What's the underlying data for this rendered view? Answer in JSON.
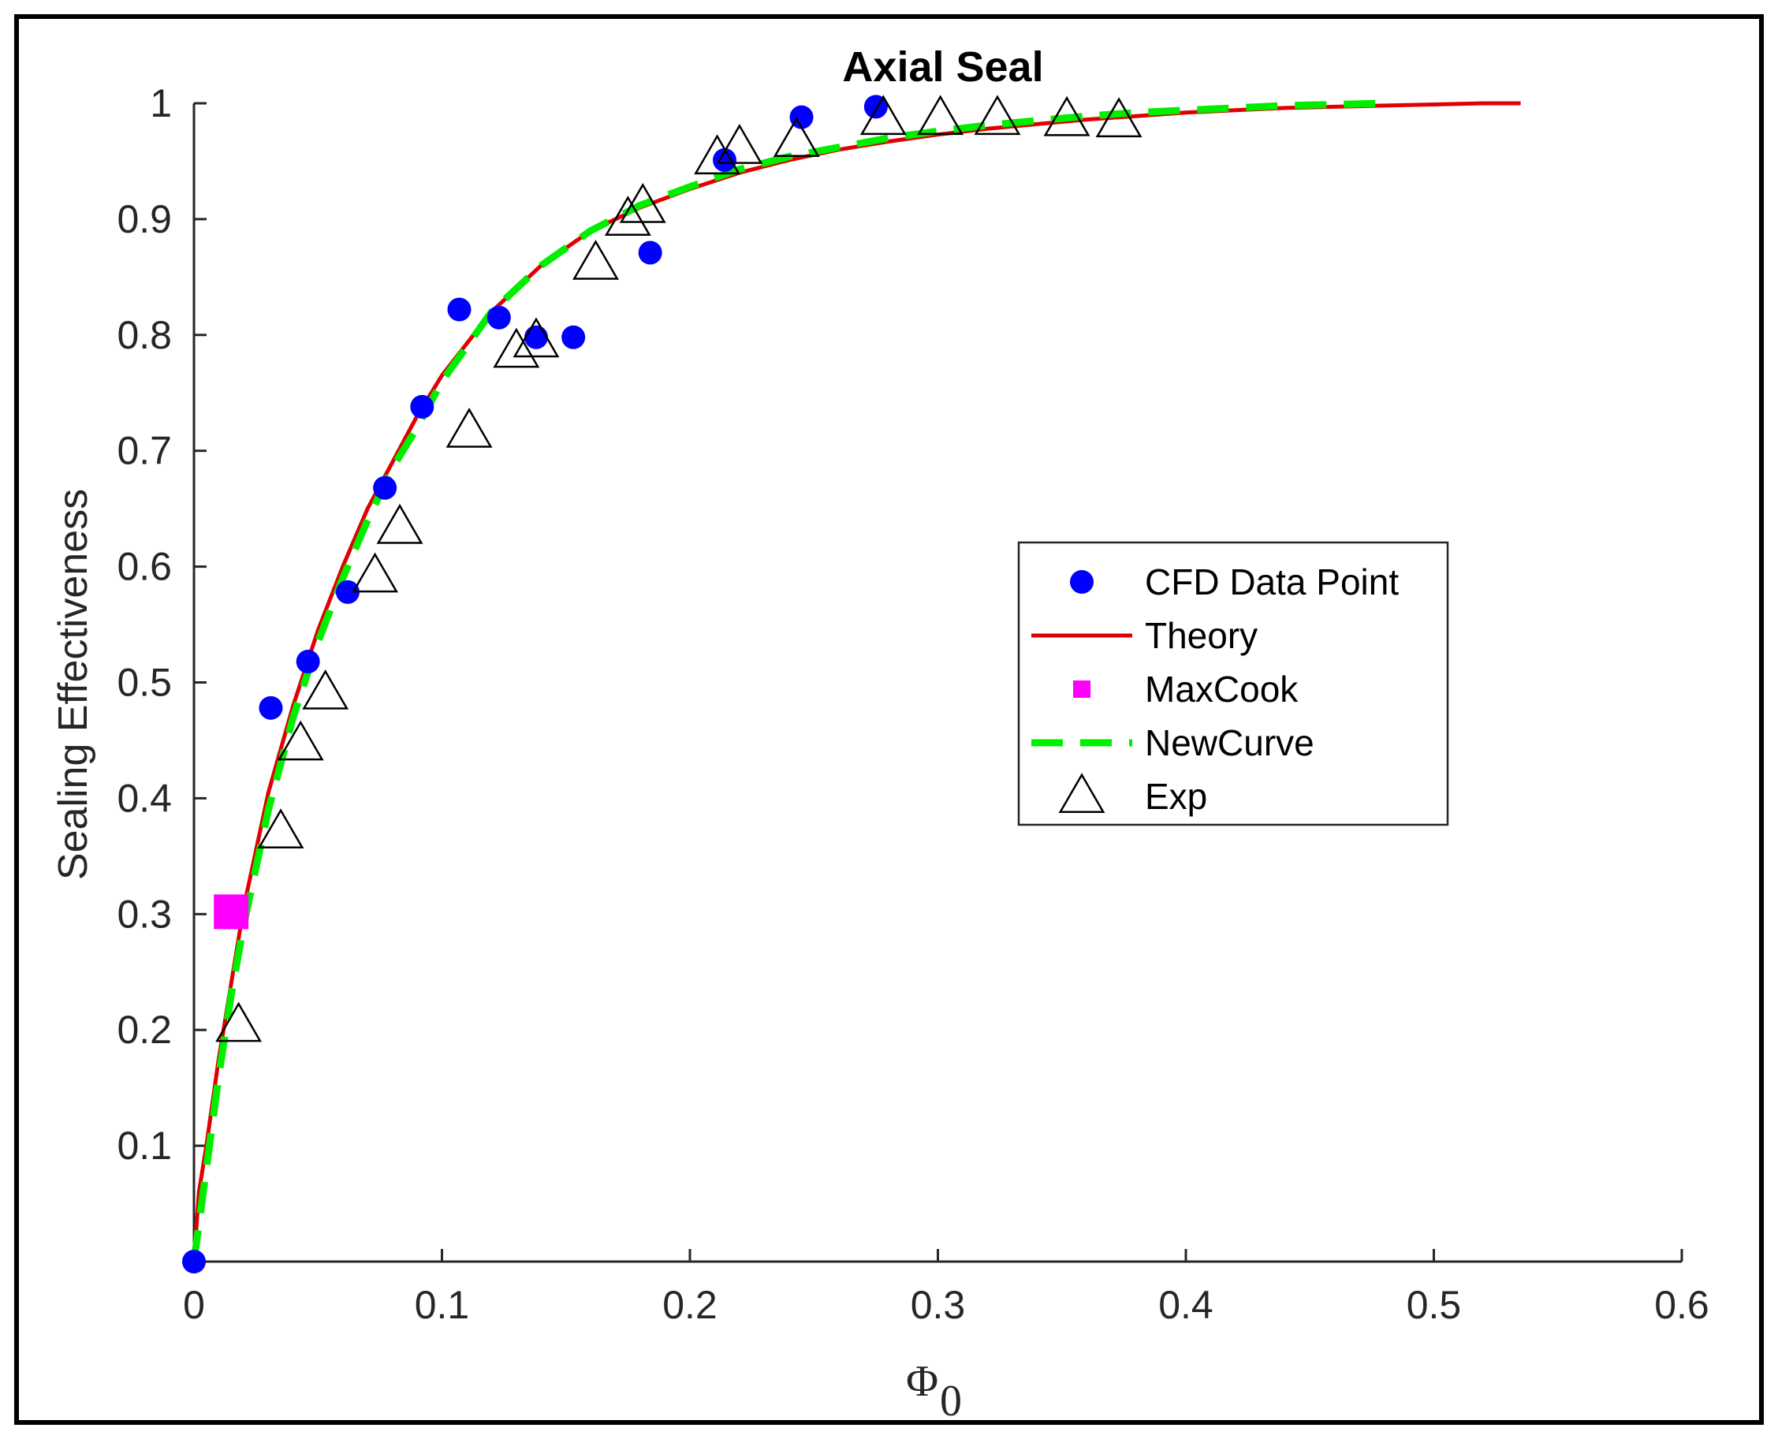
{
  "chart_data": {
    "type": "scatter",
    "title": "Axial Seal",
    "xlabel": "Φ",
    "xlabel_subscript": "0",
    "ylabel": "Sealing Effectiveness",
    "xlim": [
      0,
      0.6
    ],
    "ylim": [
      0,
      1
    ],
    "x_ticks": [
      0,
      0.1,
      0.2,
      0.3,
      0.4,
      0.5,
      0.6
    ],
    "x_tick_labels": [
      "0",
      "0.1",
      "0.2",
      "0.3",
      "0.4",
      "0.5",
      "0.6"
    ],
    "y_ticks": [
      0.1,
      0.2,
      0.3,
      0.4,
      0.5,
      0.6,
      0.7,
      0.8,
      0.9,
      1
    ],
    "y_tick_labels": [
      "0.1",
      "0.2",
      "0.3",
      "0.4",
      "0.5",
      "0.6",
      "0.7",
      "0.8",
      "0.9",
      "1"
    ],
    "grid": false,
    "legend_position": "center-right",
    "series": [
      {
        "name": "CFD Data Point",
        "kind": "scatter",
        "marker": "circle",
        "color": "#0000ff",
        "x": [
          0,
          0.031,
          0.046,
          0.062,
          0.077,
          0.092,
          0.107,
          0.123,
          0.138,
          0.153,
          0.184,
          0.214,
          0.245,
          0.275
        ],
        "y": [
          0.0,
          0.478,
          0.518,
          0.578,
          0.668,
          0.738,
          0.822,
          0.815,
          0.798,
          0.798,
          0.871,
          0.951,
          0.988,
          0.997
        ]
      },
      {
        "name": "Theory",
        "kind": "line",
        "style": "solid",
        "color": "#e00000",
        "x": [
          0,
          0.002,
          0.005,
          0.01,
          0.015,
          0.02,
          0.03,
          0.04,
          0.05,
          0.06,
          0.07,
          0.08,
          0.09,
          0.1,
          0.12,
          0.14,
          0.16,
          0.18,
          0.2,
          0.22,
          0.24,
          0.26,
          0.28,
          0.3,
          0.32,
          0.34,
          0.36,
          0.38,
          0.4,
          0.42,
          0.44,
          0.46,
          0.48,
          0.5,
          0.52,
          0.535
        ],
        "y": [
          0.0,
          0.06,
          0.1,
          0.175,
          0.24,
          0.305,
          0.405,
          0.48,
          0.545,
          0.6,
          0.65,
          0.69,
          0.73,
          0.765,
          0.82,
          0.86,
          0.89,
          0.91,
          0.926,
          0.94,
          0.951,
          0.96,
          0.967,
          0.973,
          0.978,
          0.982,
          0.986,
          0.989,
          0.992,
          0.994,
          0.996,
          0.997,
          0.998,
          0.999,
          1.0,
          1.0
        ]
      },
      {
        "name": "MaxCook",
        "kind": "scatter",
        "marker": "square",
        "color": "#ff00ff",
        "x": [
          0.015
        ],
        "y": [
          0.302
        ]
      },
      {
        "name": "NewCurve",
        "kind": "line",
        "style": "dashed",
        "color": "#00ee00",
        "x": [
          0,
          0.005,
          0.01,
          0.015,
          0.02,
          0.03,
          0.04,
          0.05,
          0.06,
          0.07,
          0.08,
          0.09,
          0.1,
          0.12,
          0.14,
          0.16,
          0.18,
          0.2,
          0.22,
          0.24,
          0.26,
          0.28,
          0.3,
          0.32,
          0.34,
          0.36,
          0.38,
          0.4,
          0.42,
          0.44,
          0.46,
          0.48
        ],
        "y": [
          0.0,
          0.08,
          0.16,
          0.23,
          0.29,
          0.39,
          0.47,
          0.535,
          0.59,
          0.64,
          0.685,
          0.72,
          0.76,
          0.82,
          0.86,
          0.89,
          0.912,
          0.928,
          0.943,
          0.954,
          0.962,
          0.97,
          0.976,
          0.981,
          0.985,
          0.989,
          0.992,
          0.994,
          0.996,
          0.998,
          0.999,
          1.0
        ]
      },
      {
        "name": "Exp",
        "kind": "scatter",
        "marker": "triangle-open",
        "color": "#000000",
        "x": [
          0.018,
          0.035,
          0.043,
          0.053,
          0.073,
          0.083,
          0.111,
          0.13,
          0.138,
          0.162,
          0.175,
          0.181,
          0.211,
          0.22,
          0.243,
          0.278,
          0.301,
          0.324,
          0.352,
          0.373
        ],
        "y": [
          0.204,
          0.371,
          0.447,
          0.491,
          0.592,
          0.634,
          0.717,
          0.786,
          0.795,
          0.862,
          0.9,
          0.911,
          0.953,
          0.962,
          0.968,
          0.987,
          0.987,
          0.987,
          0.986,
          0.985
        ]
      }
    ]
  }
}
